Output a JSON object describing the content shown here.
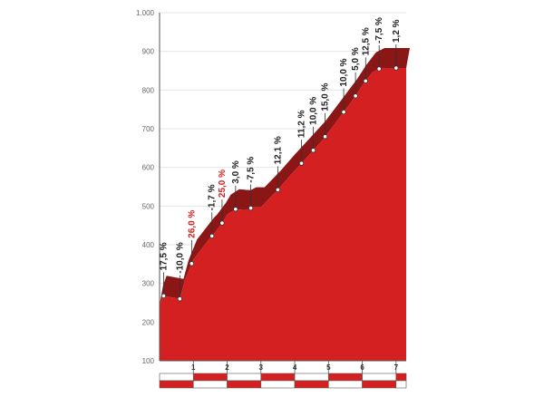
{
  "colors": {
    "profile_fill": "#d42020",
    "profile_shadow": "#8a1616",
    "grid": "#e4e4e4",
    "axis": "#555555",
    "leader": "#333333",
    "steep_label": "#d42020",
    "label": "#222222",
    "ruler_red": "#d42020",
    "ruler_white": "#ffffff"
  },
  "chart_data": {
    "type": "area",
    "xlabel": "",
    "ylabel": "",
    "xlim": [
      0,
      7.3
    ],
    "ylim": [
      100,
      1000
    ],
    "yticks": [
      100,
      200,
      300,
      400,
      500,
      600,
      700,
      800,
      900,
      1000
    ],
    "ytick_labels": [
      "100",
      "200",
      "300",
      "400",
      "500",
      "600",
      "700",
      "800",
      "900",
      "1.000"
    ],
    "xticks": [
      1,
      2,
      3,
      4,
      5,
      6,
      7
    ],
    "xtick_labels": [
      "1",
      "2",
      "3",
      "4",
      "5",
      "6",
      "7"
    ],
    "grid": true,
    "profile": {
      "x": [
        0.0,
        0.1,
        0.6,
        0.75,
        1.0,
        1.5,
        1.6,
        1.85,
        2.0,
        2.25,
        2.5,
        2.6,
        2.75,
        3.0,
        3.5,
        3.9,
        4.35,
        4.8,
        5.25,
        5.75,
        6.0,
        6.3,
        6.55,
        6.85,
        7.3
      ],
      "y": [
        245,
        268,
        260,
        308,
        362,
        418,
        427,
        456,
        478,
        492,
        490,
        490,
        497,
        497,
        542,
        582,
        625,
        668,
        720,
        778,
        812,
        846,
        857,
        857,
        857
      ]
    },
    "grades": {
      "labels": [
        "17,5 %",
        "-10,0 %",
        "26,0 %",
        "-1,7 %",
        "25,0 %",
        "3,0 %",
        "-7,5 %",
        "12,1 %",
        "11,2 %",
        "10,0 %",
        "15,0 %",
        "10,0 %",
        "5,0 %",
        "12,5 %",
        "-7,5 %",
        "1,2 %"
      ],
      "x": [
        0.12,
        0.6,
        0.95,
        1.55,
        1.85,
        2.25,
        2.7,
        3.5,
        4.2,
        4.55,
        4.9,
        5.45,
        5.8,
        6.1,
        6.5,
        7.0
      ],
      "steep": [
        false,
        false,
        true,
        false,
        true,
        false,
        false,
        false,
        false,
        false,
        false,
        false,
        false,
        false,
        false,
        false
      ]
    }
  }
}
